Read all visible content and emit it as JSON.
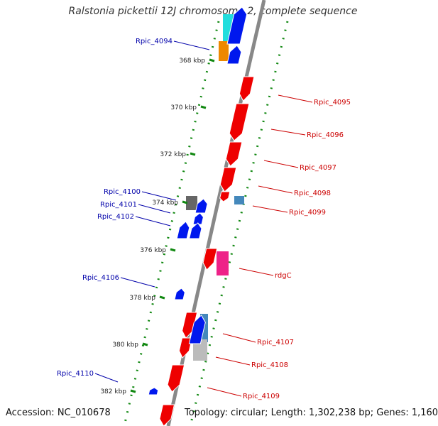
{
  "title": "Ralstonia pickettii 12J chromosome 2, complete sequence",
  "footer": {
    "accession": "Accession: NC_010678",
    "topology": "Topology: circular; Length: 1,302,238 bp; Genes: 1,160"
  },
  "colors": {
    "forward_gene": "#ee0000",
    "reverse_gene": "#0018ee",
    "forward_label": "#cc0000",
    "reverse_label": "#0000aa",
    "backbone": "#888888",
    "tick": "#118811",
    "cyan": "#22dddd",
    "orange": "#ee8800",
    "magenta": "#ee2288",
    "gray_dark": "#666666",
    "gray_light": "#bbbbbb",
    "steel": "#4488bb"
  },
  "kbp_labels": [
    "368 kbp",
    "370 kbp",
    "372 kbp",
    "374 kbp",
    "376 kbp",
    "378 kbp",
    "380 kbp",
    "382 kbp"
  ],
  "forward_genes": [
    "Rpic_4095",
    "Rpic_4096",
    "Rpic_4097",
    "Rpic_4098",
    "Rpic_4099",
    "rdgC",
    "Rpic_4107",
    "Rpic_4108",
    "Rpic_4109"
  ],
  "reverse_genes": [
    "Rpic_4094",
    "Rpic_4100",
    "Rpic_4101",
    "Rpic_4102",
    "Rpic_4106",
    "Rpic_4110"
  ]
}
